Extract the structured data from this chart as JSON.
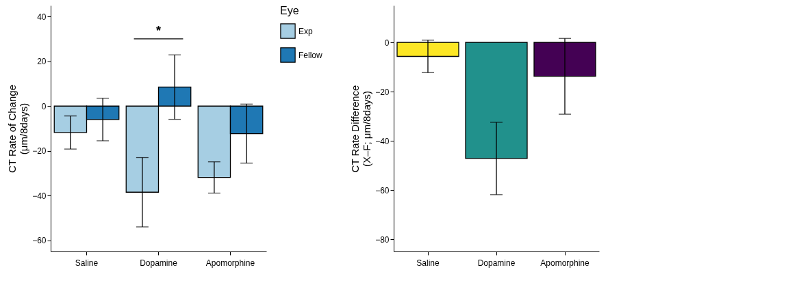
{
  "chart_data": [
    {
      "type": "bar",
      "ylabel": "CT Rate of Change\n(μm/8days)",
      "legend_title": "Eye",
      "legend": "right",
      "categories": [
        "Saline",
        "Dopamine",
        "Apomorphine"
      ],
      "ylim": [
        -65,
        45
      ],
      "yticks": [
        -60,
        -40,
        -20,
        0,
        20,
        40
      ],
      "grid": false,
      "series": [
        {
          "name": "Exp",
          "color": "#a6cee3",
          "values": [
            -11.8,
            -38.5,
            -31.9
          ],
          "errors": [
            7.4,
            15.5,
            7
          ]
        },
        {
          "name": "Fellow",
          "color": "#1f78b4",
          "values": [
            -6,
            8.5,
            -12.3
          ],
          "errors": [
            9.5,
            14.4,
            13.2
          ]
        }
      ],
      "annotations": [
        "*"
      ]
    },
    {
      "type": "bar",
      "ylabel": "CT Rate Difference\n(X–F; μm/8days)",
      "categories": [
        "Saline",
        "Dopamine",
        "Apomorphine"
      ],
      "values": [
        -5.7,
        -47.2,
        -13.8
      ],
      "errors": [
        6.6,
        14.7,
        15.4
      ],
      "colors": [
        "#fde725",
        "#21918c",
        "#440154"
      ],
      "ylim": [
        -85,
        15
      ],
      "yticks": [
        -80,
        -60,
        -40,
        -20,
        0
      ],
      "grid": false
    }
  ]
}
